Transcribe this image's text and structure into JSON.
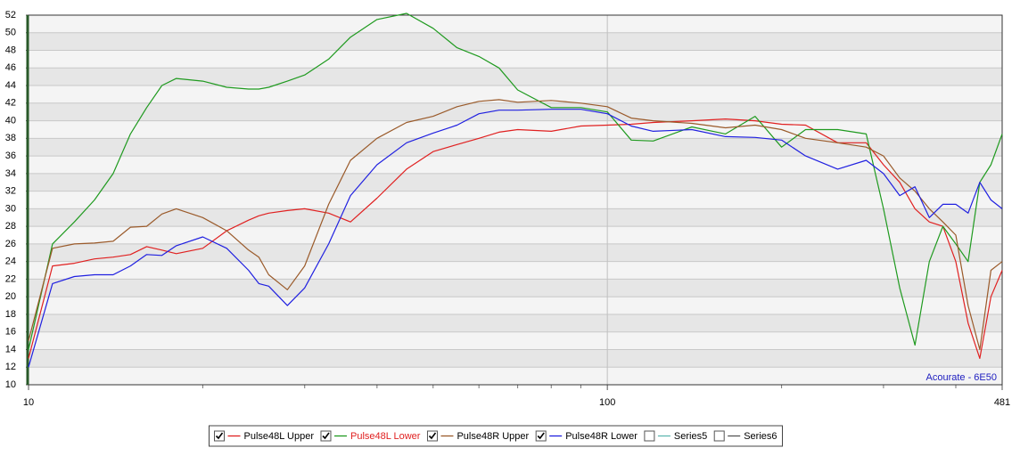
{
  "chart_data": {
    "type": "line",
    "annotation": "Acourate - 6E50",
    "log_x": true,
    "grid": true,
    "xlim": [
      10,
      481
    ],
    "xticks": [
      10,
      100,
      481
    ],
    "xminorticks": [
      20,
      30,
      40,
      50,
      60,
      70,
      80,
      90,
      200,
      300,
      400
    ],
    "ylim": [
      10,
      52
    ],
    "yticks": [
      10,
      12,
      14,
      16,
      18,
      20,
      22,
      24,
      26,
      28,
      30,
      32,
      34,
      36,
      38,
      40,
      42,
      44,
      46,
      48,
      50,
      52
    ],
    "x": [
      10,
      11,
      12,
      13,
      14,
      15,
      16,
      17,
      18,
      20,
      22,
      24,
      25,
      26,
      28,
      30,
      33,
      36,
      40,
      45,
      50,
      55,
      60,
      65,
      70,
      80,
      90,
      100,
      110,
      120,
      140,
      160,
      180,
      200,
      220,
      250,
      280,
      300,
      320,
      340,
      360,
      380,
      400,
      420,
      440,
      460,
      481
    ],
    "series": [
      {
        "name": "Pulse48L Upper",
        "color": "#e02020",
        "checked": true,
        "values": [
          13,
          23.5,
          23.8,
          24.3,
          24.5,
          24.8,
          25.7,
          25.3,
          24.9,
          25.5,
          27.5,
          28.7,
          29.2,
          29.5,
          29.8,
          30,
          29.5,
          28.5,
          31.2,
          34.5,
          36.5,
          37.3,
          38,
          38.7,
          39,
          38.8,
          39.4,
          39.5,
          39.6,
          39.8,
          40,
          40.2,
          40,
          39.6,
          39.5,
          37.5,
          37.5,
          35,
          33,
          30,
          28.5,
          28,
          24,
          17,
          13,
          20,
          23
        ]
      },
      {
        "name": "Pulse48L Lower",
        "color": "#1f9a1f",
        "checked": true,
        "values": [
          14,
          26,
          28.5,
          31,
          34,
          38.5,
          41.5,
          44,
          44.8,
          44.5,
          43.8,
          43.6,
          43.6,
          43.8,
          44.5,
          45.2,
          47,
          49.5,
          51.5,
          52.2,
          50.5,
          48.3,
          47.3,
          46,
          43.5,
          41.5,
          41.5,
          41,
          37.8,
          37.7,
          39.3,
          38.5,
          40.5,
          37,
          39,
          39,
          38.5,
          30,
          21,
          14.5,
          24,
          28,
          26,
          24,
          33,
          35,
          38.5
        ]
      },
      {
        "name": "Pulse48R Upper",
        "color": "#9a5a2a",
        "checked": true,
        "values": [
          15,
          25.5,
          26,
          26.1,
          26.3,
          27.9,
          28,
          29.4,
          30,
          29,
          27.5,
          25.3,
          24.5,
          22.5,
          20.8,
          23.5,
          30.5,
          35.5,
          38,
          39.8,
          40.5,
          41.6,
          42.2,
          42.4,
          42.1,
          42.3,
          42,
          41.6,
          40.3,
          40,
          39.7,
          39.2,
          39.5,
          39,
          38,
          37.5,
          37,
          36,
          33.5,
          32,
          30,
          28.5,
          27,
          19,
          14,
          23,
          24
        ]
      },
      {
        "name": "Pulse48R Lower",
        "color": "#2020e0",
        "checked": true,
        "values": [
          12,
          21.5,
          22.3,
          22.5,
          22.5,
          23.5,
          24.8,
          24.7,
          25.8,
          26.8,
          25.5,
          23,
          21.5,
          21.2,
          19,
          21,
          26,
          31.5,
          35,
          37.5,
          38.6,
          39.5,
          40.8,
          41.2,
          41.2,
          41.3,
          41.3,
          40.8,
          39.4,
          38.8,
          39,
          38.2,
          38.1,
          37.8,
          36,
          34.5,
          35.5,
          34,
          31.5,
          32.5,
          29,
          30.5,
          30.5,
          29.5,
          33,
          31,
          30
        ]
      },
      {
        "name": "Series5",
        "color": "#5fb8b0",
        "checked": false,
        "values": [
          null,
          null,
          null,
          null,
          null,
          null,
          null,
          null,
          null,
          null,
          null,
          null,
          null,
          null,
          null,
          null,
          null,
          null,
          null,
          null,
          null,
          null,
          null,
          null,
          null,
          null,
          null,
          null,
          null,
          null,
          null,
          null,
          null,
          null,
          null,
          null,
          null,
          null,
          null,
          null,
          null,
          null,
          null,
          null,
          null,
          null,
          null
        ]
      },
      {
        "name": "Series6",
        "color": "#555555",
        "checked": false,
        "values": [
          null,
          null,
          null,
          null,
          null,
          null,
          null,
          null,
          null,
          null,
          null,
          null,
          null,
          null,
          null,
          null,
          null,
          null,
          null,
          null,
          null,
          null,
          null,
          null,
          null,
          null,
          null,
          null,
          null,
          null,
          null,
          null,
          null,
          null,
          null,
          null,
          null,
          null,
          null,
          null,
          null,
          null,
          null,
          null,
          null,
          null,
          null
        ]
      }
    ]
  }
}
